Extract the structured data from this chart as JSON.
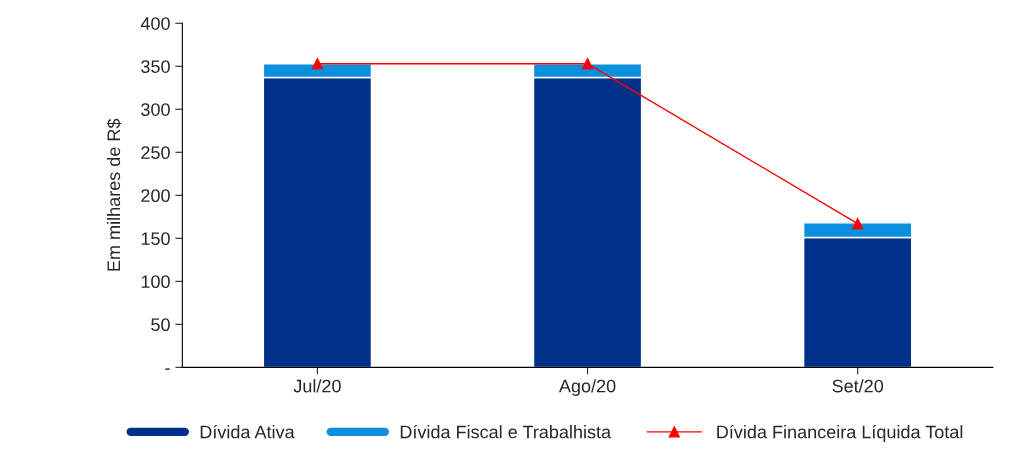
{
  "chart_data": {
    "type": "bar",
    "stacked": true,
    "ylabel": "Em milhares de R$",
    "categories": [
      "Jul/20",
      "Ago/20",
      "Set/20"
    ],
    "series": [
      {
        "name": "Dívida Ativa",
        "color": "#00308a",
        "values": [
          337,
          337,
          151
        ]
      },
      {
        "name": "Dívida Fiscal e Trabalhista",
        "color": "#0a90dc",
        "values": [
          16,
          16,
          17
        ]
      },
      {
        "name": "Dívida Financeira Líquida Total",
        "type": "line",
        "color": "#ff0000",
        "marker": "triangle",
        "values": [
          353,
          353,
          167
        ]
      }
    ],
    "ylim": [
      0,
      400
    ],
    "yticks": [
      {
        "value": 0,
        "label": "-"
      },
      50,
      100,
      150,
      200,
      250,
      300,
      350,
      400
    ],
    "grid": false,
    "legend": "bottom"
  }
}
